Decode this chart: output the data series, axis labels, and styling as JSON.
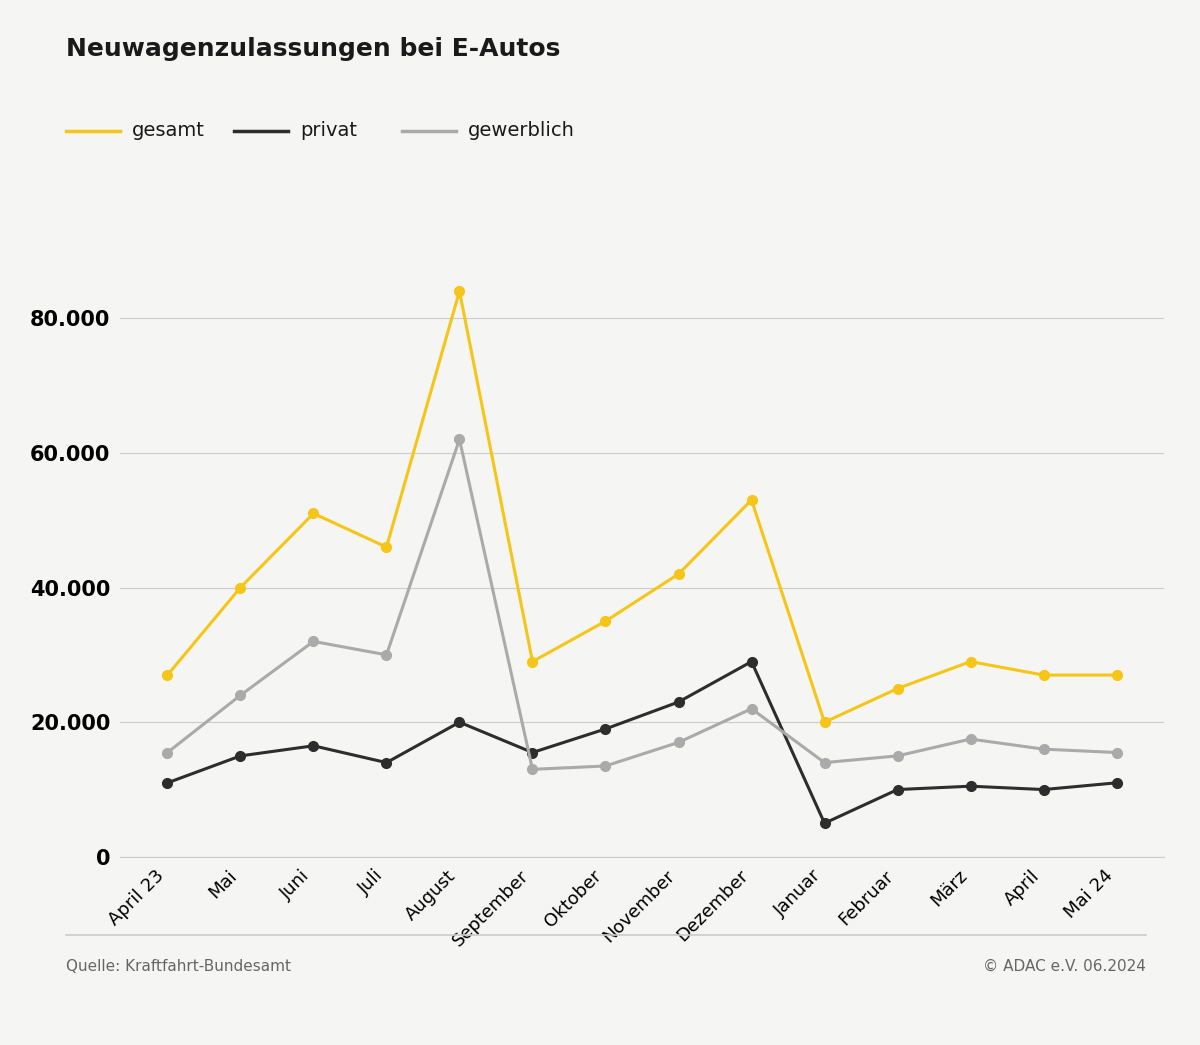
{
  "title": "Neuwagenzulassungen bei E-Autos",
  "source_left": "Quelle: Kraftfahrt-Bundesamt",
  "source_right": "© ADAC e.V. 06.2024",
  "categories": [
    "April 23",
    "Mai",
    "Juni",
    "Juli",
    "August",
    "September",
    "Oktober",
    "November",
    "Dezember",
    "Januar",
    "Februar",
    "März",
    "April",
    "Mai 24"
  ],
  "gesamt": [
    27000,
    40000,
    51000,
    46000,
    84000,
    29000,
    35000,
    42000,
    53000,
    20000,
    25000,
    29000,
    27000,
    27000
  ],
  "privat": [
    11000,
    15000,
    16500,
    14000,
    20000,
    15500,
    19000,
    23000,
    29000,
    5000,
    10000,
    10500,
    10000,
    11000
  ],
  "gewerblich": [
    15500,
    24000,
    32000,
    30000,
    62000,
    13000,
    13500,
    17000,
    22000,
    14000,
    15000,
    17500,
    16000,
    15500
  ],
  "gesamt_color": "#f5c518",
  "privat_color": "#2d2d2d",
  "gewerblich_color": "#aaaaaa",
  "background_color": "#f5f5f3",
  "grid_color": "#cccccc",
  "ylim": [
    0,
    90000
  ],
  "yticks": [
    0,
    20000,
    40000,
    60000,
    80000
  ],
  "legend_labels": [
    "gesamt",
    "privat",
    "gewerblich"
  ]
}
